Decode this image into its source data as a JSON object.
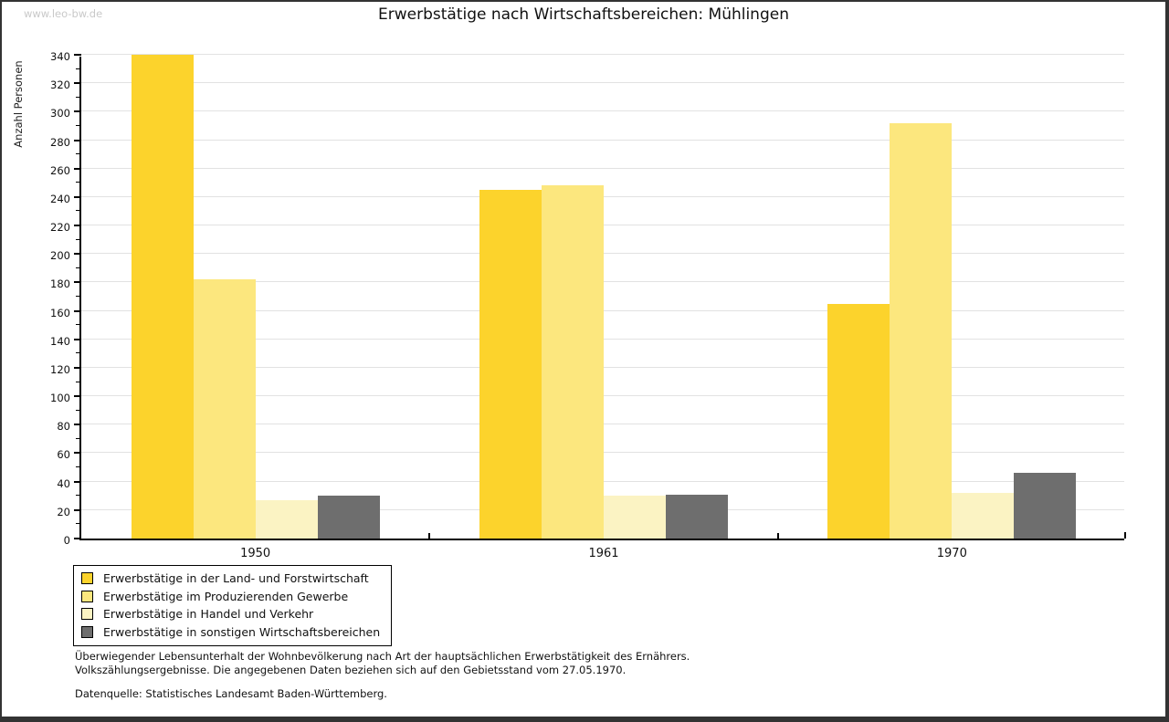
{
  "watermark": "www.leo-bw.de",
  "chart_data": {
    "type": "bar",
    "title": "Erwerbstätige nach Wirtschaftsbereichen: Mühlingen",
    "ylabel": "Anzahl Personen",
    "xlabel": "",
    "categories": [
      "1950",
      "1961",
      "1970"
    ],
    "series": [
      {
        "name": "Erwerbstätige in der Land- und Forstwirtschaft",
        "color": "#FCD32C",
        "values": [
          340,
          245,
          165
        ]
      },
      {
        "name": "Erwerbstätige im Produzierenden Gewerbe",
        "color": "#FCE77E",
        "values": [
          182,
          248,
          292
        ]
      },
      {
        "name": "Erwerbstätige in Handel und Verkehr",
        "color": "#FBF3C3",
        "values": [
          27,
          30,
          32
        ]
      },
      {
        "name": "Erwerbstätige in sonstigen Wirtschaftsbereichen",
        "color": "#6E6E6E",
        "values": [
          30,
          31,
          46
        ]
      }
    ],
    "ylim": [
      0,
      340
    ],
    "y_ticks": [
      0,
      20,
      40,
      60,
      80,
      100,
      120,
      140,
      160,
      180,
      200,
      220,
      240,
      260,
      280,
      300,
      320,
      340
    ],
    "y_minor_step": 10,
    "grid": true,
    "legend_position": "bottom-left",
    "grid_color": "#E2E2E2"
  },
  "footer": {
    "line1": "Überwiegender Lebensunterhalt der Wohnbevölkerung nach Art der hauptsächlichen Erwerbstätigkeit des Ernährers.",
    "line2": "Volkszählungsergebnisse. Die angegebenen Daten beziehen sich auf den Gebietsstand vom 27.05.1970.",
    "source": "Datenquelle: Statistisches Landesamt Baden-Württemberg."
  }
}
